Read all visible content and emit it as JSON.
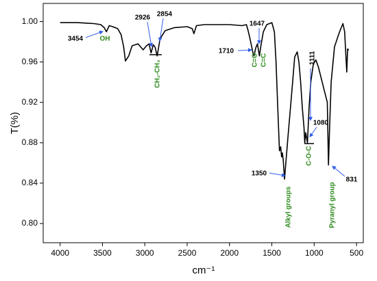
{
  "chart_data": {
    "type": "line",
    "x_label": "cm⁻¹",
    "y_label": "T(%)",
    "color": "#000000",
    "xlim": [
      4200,
      420
    ],
    "ylim": [
      0.781,
      1.018
    ],
    "xticks": [
      4000,
      3500,
      3000,
      2500,
      2000,
      1500,
      1000,
      500
    ],
    "yticks": [
      {
        "value": 0.8,
        "label": "0.80"
      },
      {
        "value": 0.84,
        "label": "0.84"
      },
      {
        "value": 0.88,
        "label": "0.88"
      },
      {
        "value": 0.92,
        "label": "0.92"
      },
      {
        "value": 0.96,
        "label": "0.96"
      },
      {
        "value": 1.0,
        "label": "1.00"
      }
    ],
    "x": [
      4000,
      3800,
      3600,
      3520,
      3480,
      3454,
      3420,
      3380,
      3320,
      3280,
      3250,
      3229,
      3190,
      3150,
      3080,
      3020,
      2980,
      2950,
      2926,
      2900,
      2880,
      2854,
      2820,
      2760,
      2650,
      2500,
      2440,
      2420,
      2390,
      2300,
      2000,
      1850,
      1800,
      1780,
      1760,
      1740,
      1720,
      1710,
      1690,
      1670,
      1647,
      1625,
      1600,
      1560,
      1500,
      1470,
      1450,
      1430,
      1410,
      1395,
      1385,
      1375,
      1365,
      1350,
      1335,
      1310,
      1280,
      1250,
      1230,
      1200,
      1180,
      1160,
      1140,
      1120,
      1111,
      1100,
      1080,
      1060,
      1040,
      1010,
      980,
      950,
      920,
      890,
      860,
      845,
      831,
      820,
      800,
      760,
      720,
      690,
      660,
      640,
      625,
      615,
      605,
      595,
      590
    ],
    "values": [
      0.999,
      0.999,
      0.998,
      0.997,
      0.994,
      0.99,
      0.996,
      0.995,
      0.993,
      0.987,
      0.975,
      0.961,
      0.966,
      0.976,
      0.978,
      0.972,
      0.976,
      0.978,
      0.969,
      0.977,
      0.975,
      0.966,
      0.983,
      0.991,
      0.994,
      0.995,
      0.993,
      0.988,
      0.996,
      0.997,
      0.997,
      0.996,
      0.997,
      0.991,
      0.984,
      0.976,
      0.968,
      0.966,
      0.974,
      0.978,
      0.966,
      0.978,
      0.99,
      0.997,
      0.999,
      0.99,
      0.96,
      0.915,
      0.872,
      0.876,
      0.866,
      0.87,
      0.862,
      0.844,
      0.86,
      0.885,
      0.915,
      0.945,
      0.965,
      0.97,
      0.96,
      0.94,
      0.915,
      0.895,
      0.88,
      0.89,
      0.88,
      0.915,
      0.94,
      0.958,
      0.962,
      0.955,
      0.945,
      0.935,
      0.925,
      0.92,
      0.858,
      0.89,
      0.94,
      0.975,
      0.985,
      0.992,
      0.998,
      0.99,
      0.965,
      0.95,
      0.973,
      0.972,
      0.972
    ],
    "annotations": [
      {
        "text": "3454",
        "color": "#000000"
      },
      {
        "text": "OH",
        "color": "#2e8b1e"
      },
      {
        "text": "2926",
        "color": "#000000"
      },
      {
        "text": "2854",
        "color": "#000000"
      },
      {
        "text": "CH₂-CH₃",
        "color": "#2e8b1e"
      },
      {
        "text": "1647",
        "color": "#000000"
      },
      {
        "text": "1710",
        "color": "#000000"
      },
      {
        "text": "C=O",
        "color": "#2e8b1e"
      },
      {
        "text": "C=C",
        "color": "#2e8b1e"
      },
      {
        "text": "1111",
        "color": "#000000"
      },
      {
        "text": "1080",
        "color": "#000000"
      },
      {
        "text": "C-O-C",
        "color": "#2e8b1e"
      },
      {
        "text": "1350",
        "color": "#000000"
      },
      {
        "text": "Alkyl groups",
        "color": "#2e8b1e"
      },
      {
        "text": "Pyranyl group",
        "color": "#2e8b1e"
      },
      {
        "text": "831",
        "color": "#000000"
      }
    ]
  }
}
